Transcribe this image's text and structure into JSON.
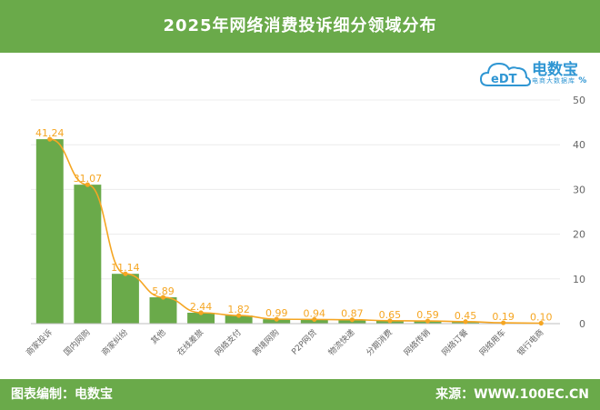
{
  "header": {
    "title": "2025年网络消费投诉细分领域分布"
  },
  "logo": {
    "brand": "电数宝",
    "tagline": "电商大数据库",
    "cloud_text": "eDT",
    "percent": "%"
  },
  "footer": {
    "left": "图表编制：电数宝",
    "right": "来源：WWW.100EC.CN"
  },
  "colors": {
    "header_bg": "#6aaa4a",
    "bar": "#6aaa4a",
    "line": "#f5a623",
    "label": "#f5a623",
    "axis_text": "#666666"
  },
  "chart_data": {
    "type": "bar",
    "categories": [
      "商家投诉",
      "国内网购",
      "商家纠纷",
      "其他",
      "在线差旅",
      "网络支付",
      "跨境网购",
      "P2P网贷",
      "物流快递",
      "分期消费",
      "网络传销",
      "网络订餐",
      "网络用车",
      "银行电商"
    ],
    "values": [
      41.24,
      31.07,
      11.14,
      5.89,
      2.44,
      1.82,
      0.99,
      0.94,
      0.87,
      0.65,
      0.59,
      0.45,
      0.19,
      0.1
    ],
    "value_labels": [
      "41.24",
      "31.07",
      "11.14",
      "5.89",
      "2.44",
      "1.82",
      "0.99",
      "0.94",
      "0.87",
      "0.65",
      "0.59",
      "0.45",
      "0.19",
      "0.10"
    ],
    "ylim": [
      0,
      50
    ],
    "yticks": [
      "0",
      "10",
      "20",
      "30",
      "40",
      "50"
    ],
    "overlay_line": true,
    "grid": true,
    "y_axis_side": "right"
  }
}
